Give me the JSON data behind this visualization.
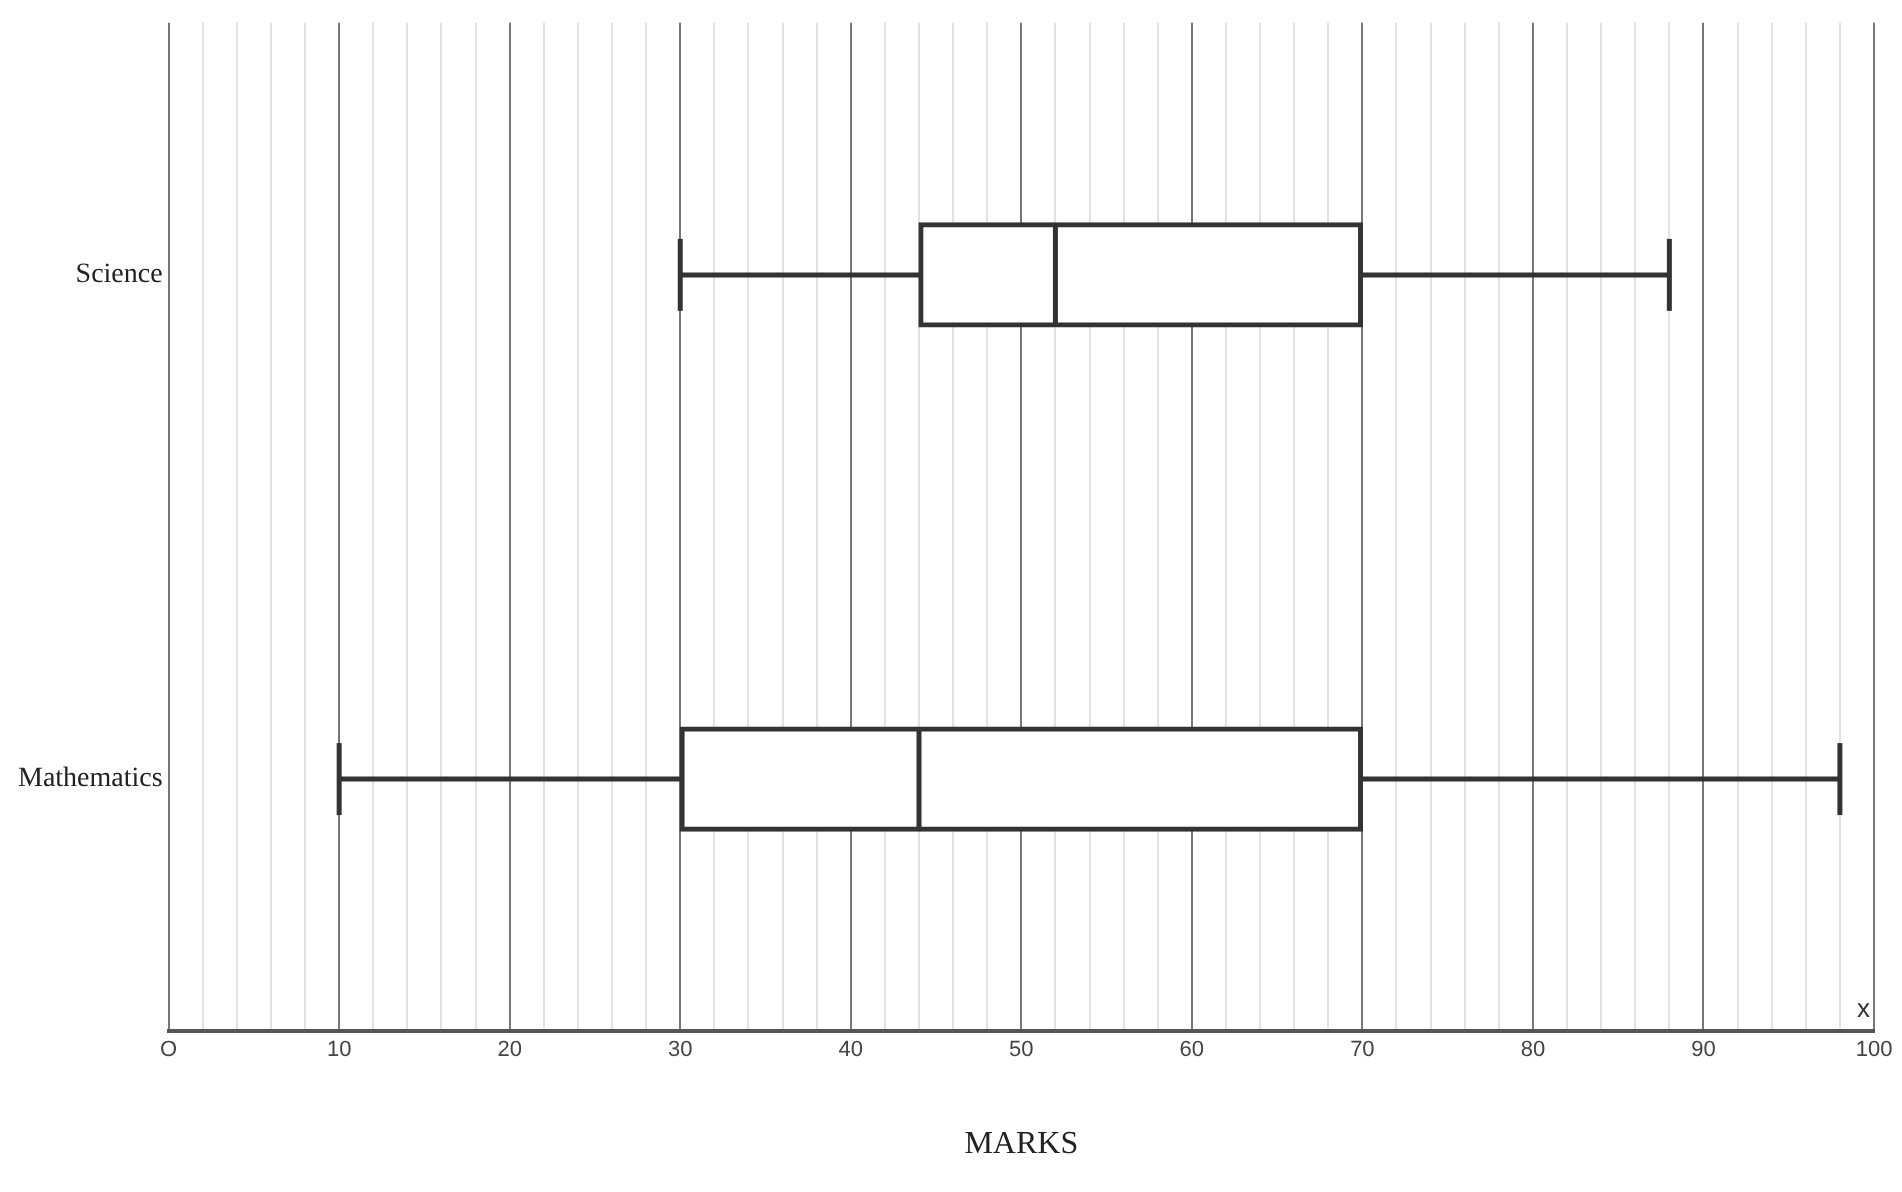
{
  "chart_data": {
    "type": "box",
    "orientation": "horizontal",
    "xlabel": "MARKS",
    "categories": [
      "Science",
      "Mathematics"
    ],
    "boxes": [
      {
        "low": 30,
        "q1": 44,
        "median": 52,
        "q3": 70,
        "high": 88
      },
      {
        "low": 10,
        "q1": 30,
        "median": 44,
        "q3": 70,
        "high": 98
      }
    ],
    "xlim": [
      0,
      100
    ],
    "xticks": [
      {
        "value": 0,
        "label": "O"
      },
      {
        "value": 2,
        "label": null
      },
      {
        "value": 4,
        "label": null
      },
      {
        "value": 6,
        "label": null
      },
      {
        "value": 8,
        "label": null
      },
      10,
      {
        "value": 12,
        "label": null
      },
      {
        "value": 14,
        "label": null
      },
      {
        "value": 16,
        "label": null
      },
      {
        "value": 18,
        "label": null
      },
      20,
      {
        "value": 22,
        "label": null
      },
      {
        "value": 24,
        "label": null
      },
      {
        "value": 26,
        "label": null
      },
      {
        "value": 28,
        "label": null
      },
      30,
      {
        "value": 32,
        "label": null
      },
      {
        "value": 34,
        "label": null
      },
      {
        "value": 36,
        "label": null
      },
      {
        "value": 38,
        "label": null
      },
      40,
      {
        "value": 42,
        "label": null
      },
      {
        "value": 44,
        "label": null
      },
      {
        "value": 46,
        "label": null
      },
      {
        "value": 48,
        "label": null
      },
      50,
      {
        "value": 52,
        "label": null
      },
      {
        "value": 54,
        "label": null
      },
      {
        "value": 56,
        "label": null
      },
      {
        "value": 58,
        "label": null
      },
      60,
      {
        "value": 62,
        "label": null
      },
      {
        "value": 64,
        "label": null
      },
      {
        "value": 66,
        "label": null
      },
      {
        "value": 68,
        "label": null
      },
      70,
      {
        "value": 72,
        "label": null
      },
      {
        "value": 74,
        "label": null
      },
      {
        "value": 76,
        "label": null
      },
      {
        "value": 78,
        "label": null
      },
      80,
      {
        "value": 82,
        "label": null
      },
      {
        "value": 84,
        "label": null
      },
      {
        "value": 86,
        "label": null
      },
      {
        "value": 88,
        "label": null
      },
      90,
      {
        "value": 92,
        "label": null
      },
      {
        "value": 94,
        "label": null
      },
      {
        "value": 96,
        "label": null
      },
      {
        "value": 98,
        "label": null
      },
      100
    ],
    "grid": "x",
    "legend": false,
    "annotations": [
      "x"
    ]
  }
}
